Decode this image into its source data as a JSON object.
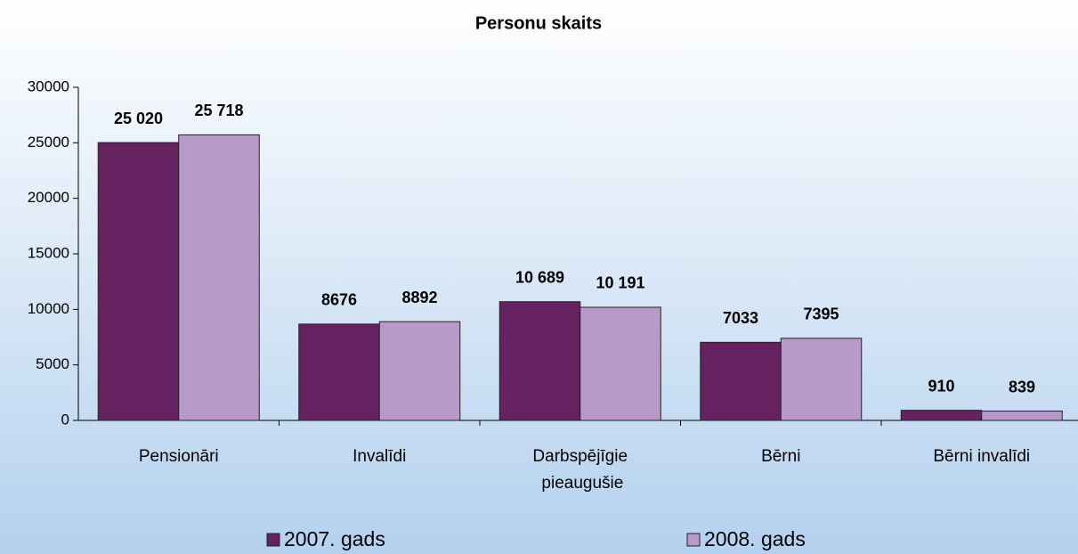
{
  "chart_data": {
    "type": "bar",
    "title": "Personu skaits",
    "categories": [
      "Pensionāri",
      "Invalīdi",
      "Darbspējīgie pieaugušie",
      "Bērni",
      "Bērni invalīdi"
    ],
    "series": [
      {
        "name": "2007. gads",
        "color": "#662260",
        "values": [
          25020,
          8676,
          10689,
          7033,
          910
        ],
        "value_labels": [
          "25 020",
          "8676",
          "10 689",
          "7033",
          "910"
        ]
      },
      {
        "name": "2008. gads",
        "color": "#b89ac9",
        "values": [
          25718,
          8892,
          10191,
          7395,
          839
        ],
        "value_labels": [
          "25 718",
          "8892",
          "10 191",
          "7395",
          "839"
        ]
      }
    ],
    "ylim": [
      0,
      30000
    ],
    "yticks": [
      0,
      5000,
      10000,
      15000,
      20000,
      25000,
      30000
    ],
    "grid": false,
    "legend": "bottom"
  }
}
